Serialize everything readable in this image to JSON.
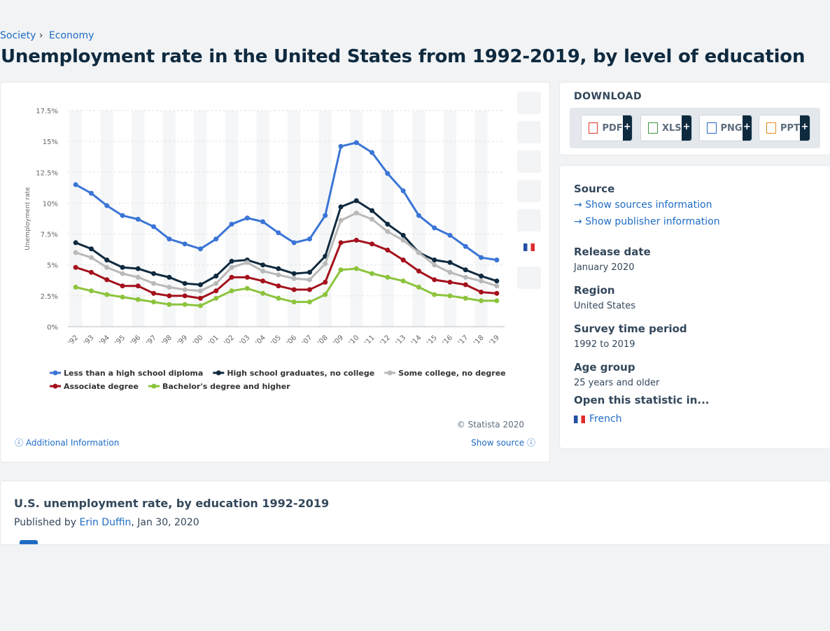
{
  "breadcrumb": [
    "Society",
    "›",
    "Economy"
  ],
  "title": "Unemployment rate in the United States from 1992-2019, by level of education",
  "chart_data": {
    "type": "line",
    "ylabel": "Unemployment rate",
    "categories": [
      "'92",
      "'93",
      "'94",
      "'95",
      "'96",
      "'97",
      "'98",
      "'99",
      "'00",
      "'01",
      "'02",
      "'03",
      "'04",
      "'05",
      "'06",
      "'07",
      "'08",
      "'09",
      "'10",
      "'11",
      "'12",
      "'13",
      "'14",
      "'15",
      "'16",
      "'17",
      "'18",
      "'19"
    ],
    "ylim": [
      0,
      17.5
    ],
    "yticks": [
      {
        "value": 0,
        "label": "0%"
      },
      {
        "value": 2.5,
        "label": "2.5%"
      },
      {
        "value": 5,
        "label": "5%"
      },
      {
        "value": 7.5,
        "label": "7.5%"
      },
      {
        "value": 10,
        "label": "10%"
      },
      {
        "value": 12.5,
        "label": "12.5%"
      },
      {
        "value": 15,
        "label": "15%"
      },
      {
        "value": 17.5,
        "label": "17.5%"
      }
    ],
    "grid": true,
    "series": [
      {
        "name": "Less than a high school diploma",
        "color": "#3a75d6",
        "values": [
          11.5,
          10.8,
          9.8,
          9.0,
          8.7,
          8.1,
          7.1,
          6.7,
          6.3,
          7.1,
          8.3,
          8.8,
          8.5,
          7.6,
          6.8,
          7.1,
          9.0,
          14.6,
          14.9,
          14.1,
          12.4,
          11.0,
          9.0,
          8.0,
          7.4,
          6.5,
          5.6,
          5.4
        ]
      },
      {
        "name": "High school graduates, no college",
        "color": "#0f2a3f",
        "values": [
          6.8,
          6.3,
          5.4,
          4.8,
          4.7,
          4.3,
          4.0,
          3.5,
          3.4,
          4.1,
          5.3,
          5.4,
          5.0,
          4.7,
          4.3,
          4.4,
          5.7,
          9.7,
          10.2,
          9.4,
          8.3,
          7.4,
          6.0,
          5.4,
          5.2,
          4.6,
          4.1,
          3.7
        ]
      },
      {
        "name": "Some college, no degree",
        "color": "#b9b9b9",
        "values": [
          6.0,
          5.6,
          4.8,
          4.3,
          4.0,
          3.5,
          3.2,
          3.0,
          2.9,
          3.5,
          4.8,
          5.2,
          4.5,
          4.2,
          3.9,
          3.8,
          5.1,
          8.6,
          9.2,
          8.7,
          7.7,
          7.0,
          6.0,
          5.0,
          4.4,
          4.0,
          3.7,
          3.3
        ]
      },
      {
        "name": "Associate degree",
        "color": "#a4111c",
        "values": [
          4.8,
          4.4,
          3.8,
          3.3,
          3.3,
          2.7,
          2.5,
          2.5,
          2.3,
          2.9,
          4.0,
          4.0,
          3.7,
          3.3,
          3.0,
          3.0,
          3.6,
          6.8,
          7.0,
          6.7,
          6.2,
          5.4,
          4.5,
          3.8,
          3.6,
          3.4,
          2.8,
          2.7
        ]
      },
      {
        "name": "Bachelor's degree and higher",
        "color": "#8cc43c",
        "values": [
          3.2,
          2.9,
          2.6,
          2.4,
          2.2,
          2.0,
          1.8,
          1.8,
          1.7,
          2.3,
          2.9,
          3.1,
          2.7,
          2.3,
          2.0,
          2.0,
          2.6,
          4.6,
          4.7,
          4.3,
          4.0,
          3.7,
          3.2,
          2.6,
          2.5,
          2.3,
          2.1,
          2.1
        ]
      }
    ],
    "copyright": "© Statista 2020",
    "additional_info": "Additional Information",
    "show_source": "Show source"
  },
  "download": {
    "heading": "DOWNLOAD",
    "formats": [
      "PDF",
      "XLS",
      "PNG",
      "PPT"
    ],
    "plus": "+"
  },
  "info": {
    "source": "Source",
    "show_sources": "Show sources information",
    "show_publisher": "Show publisher information",
    "items": [
      {
        "label": "Release date",
        "value": "January 2020"
      },
      {
        "label": "Region",
        "value": "United States"
      },
      {
        "label": "Survey time period",
        "value": "1992 to 2019"
      },
      {
        "label": "Age group",
        "value": "25 years and older"
      }
    ],
    "open_in": "Open this statistic in...",
    "language": "French"
  },
  "publication": {
    "title": "U.S. unemployment rate, by education 1992-2019",
    "published_by": "Published by",
    "author": "Erin Duffin",
    "date": ", Jan 30, 2020"
  }
}
